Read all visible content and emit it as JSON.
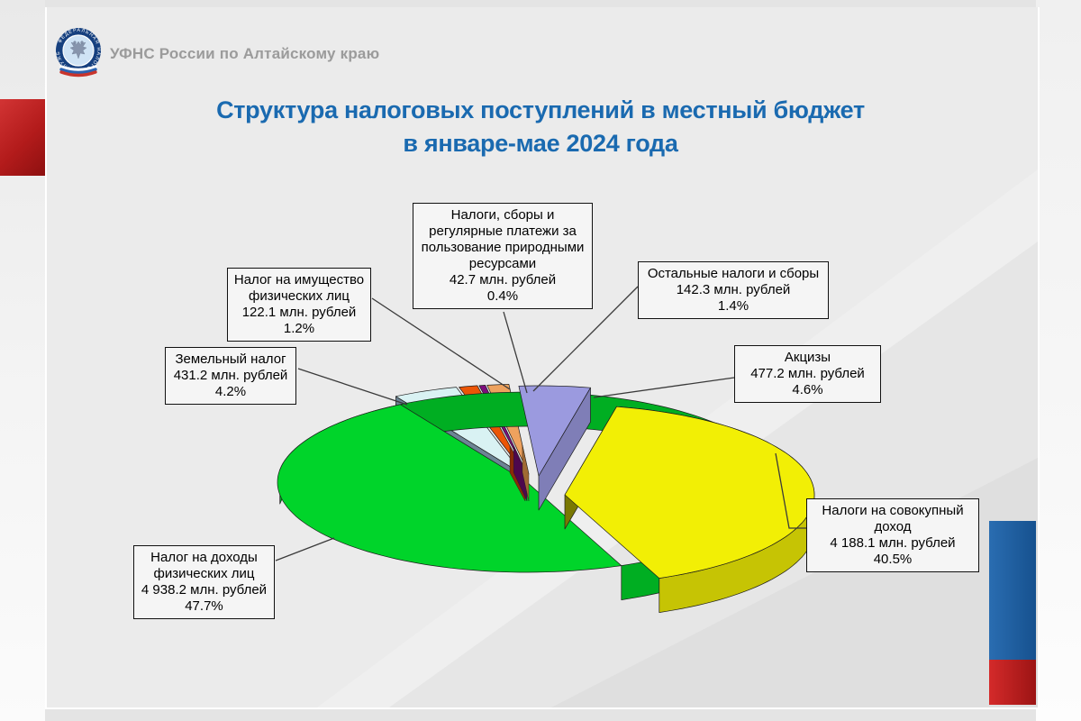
{
  "header": {
    "org": "УФНС России по Алтайскому краю",
    "logo_ring_text": "ФЕДЕРАЛЬНАЯ НАЛОГОВАЯ СЛУЖБА"
  },
  "title": {
    "line1": "Структура налоговых поступлений в местный бюджет",
    "line2": "в январе-мае 2024 года"
  },
  "palette": {
    "title_blue": "#1a6ab0",
    "accent_red": "#b51d1d",
    "accent_blue": "#1c5fa6"
  },
  "chart_data": {
    "type": "pie",
    "title": "Структура налоговых поступлений в местный бюджет в январе-мае 2024 года",
    "unit": "млн. рублей",
    "legend_position": "callout-labels",
    "slices": [
      {
        "key": "land-tax",
        "label": "Земельный налог",
        "value": 431.2,
        "value_text": "431.2 млн. рублей",
        "percent": 4.2,
        "percent_text": "4.2%",
        "color": "#d9f2f3"
      },
      {
        "key": "property-tax-individuals",
        "label": "Налог на имущество физических лиц",
        "value": 122.1,
        "value_text": "122.1 млн. рублей",
        "percent": 1.2,
        "percent_text": "1.2%",
        "color": "#eb5506"
      },
      {
        "key": "natural-resources-payments",
        "label": "Налоги, сборы и регулярные платежи за пользование природными ресурсами",
        "value": 42.7,
        "value_text": "42.7 млн. рублей",
        "percent": 0.4,
        "percent_text": "0.4%",
        "color": "#7c0d7c"
      },
      {
        "key": "other-taxes",
        "label": "Остальные налоги и сборы",
        "value": 142.3,
        "value_text": "142.3 млн. рублей",
        "percent": 1.4,
        "percent_text": "1.4%",
        "color": "#eea25e"
      },
      {
        "key": "excise",
        "label": "Акцизы",
        "value": 477.2,
        "value_text": "477.2 млн. рублей",
        "percent": 4.6,
        "percent_text": "4.6%",
        "color": "#9b9adf"
      },
      {
        "key": "aggregate-income-taxes",
        "label": "Налоги на совокупный доход",
        "value": 4188.1,
        "value_text": "4 188.1 млн. рублей",
        "percent": 40.5,
        "percent_text": "40.5%",
        "color": "#f2ef05"
      },
      {
        "key": "personal-income-tax",
        "label": "Налог на доходы физических лиц",
        "value": 4938.2,
        "value_text": "4 938.2 млн. рублей",
        "percent": 47.7,
        "percent_text": "47.7%",
        "color": "#00d42a"
      }
    ]
  }
}
